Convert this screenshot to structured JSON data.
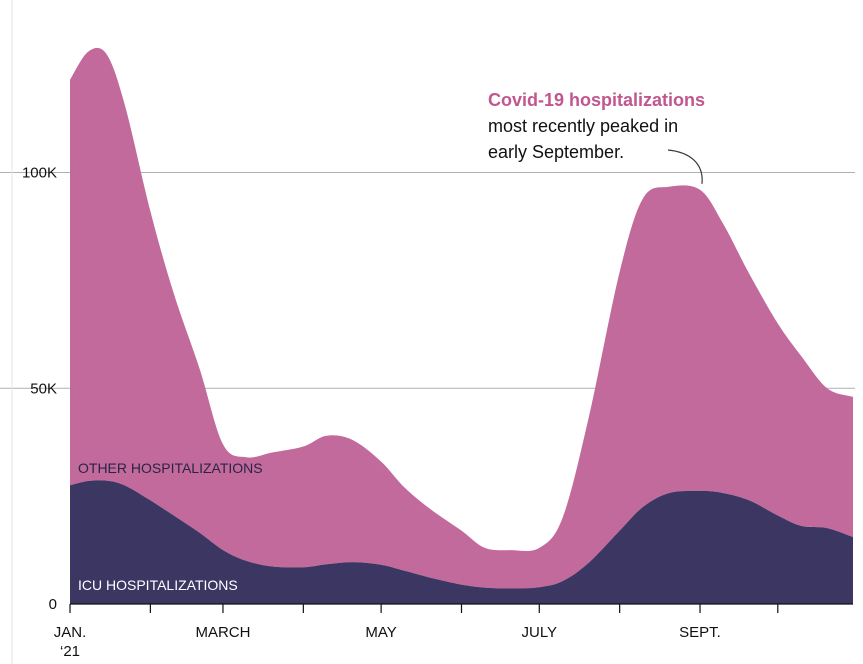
{
  "chart_data": {
    "type": "area",
    "stacked": true,
    "x": [
      "2021-01-01",
      "2021-01-08",
      "2021-01-15",
      "2021-01-22",
      "2021-02-01",
      "2021-02-10",
      "2021-02-20",
      "2021-03-01",
      "2021-03-10",
      "2021-03-20",
      "2021-04-01",
      "2021-04-10",
      "2021-04-20",
      "2021-05-01",
      "2021-05-10",
      "2021-05-20",
      "2021-06-01",
      "2021-06-10",
      "2021-06-20",
      "2021-07-01",
      "2021-07-10",
      "2021-07-20",
      "2021-08-01",
      "2021-08-10",
      "2021-08-20",
      "2021-09-01",
      "2021-09-10",
      "2021-09-20",
      "2021-10-01",
      "2021-10-10",
      "2021-10-20",
      "2021-10-30"
    ],
    "series": [
      {
        "name": "ICU HOSPITALIZATIONS",
        "color": "#3b3762",
        "values": [
          27.5,
          28.5,
          28.6,
          27.5,
          24,
          20.5,
          16.5,
          12.5,
          10,
          8.7,
          8.5,
          9.2,
          9.7,
          9.1,
          7.7,
          6.1,
          4.5,
          3.8,
          3.6,
          3.9,
          5.3,
          9.5,
          17,
          22.5,
          25.7,
          26.2,
          25.7,
          24,
          20.5,
          18.1,
          17.6,
          15.5
        ]
      },
      {
        "name": "OTHER HOSPITALIZATIONS",
        "color": "#c26a9b",
        "values": [
          94,
          99.5,
          98.9,
          88.5,
          67,
          51.5,
          38,
          24.5,
          24,
          26.4,
          28,
          29.8,
          28.3,
          23.9,
          19.3,
          15.9,
          12.5,
          9.2,
          8.9,
          9.1,
          14.7,
          33.5,
          60,
          71.5,
          71,
          69.8,
          62.3,
          52.5,
          44.5,
          39.4,
          32.4,
          32.5
        ]
      }
    ],
    "xtick_labels": [
      {
        "date": "2021-01-01",
        "label": "JAN.",
        "label2": "‘21"
      },
      {
        "date": "2021-03-01",
        "label": "MARCH"
      },
      {
        "date": "2021-05-01",
        "label": "MAY"
      },
      {
        "date": "2021-07-01",
        "label": "JULY"
      },
      {
        "date": "2021-09-01",
        "label": "SEPT."
      }
    ],
    "xticks_minor": [
      "2021-01-01",
      "2021-02-01",
      "2021-03-01",
      "2021-04-01",
      "2021-05-01",
      "2021-06-01",
      "2021-07-01",
      "2021-08-01",
      "2021-09-01",
      "2021-10-01"
    ],
    "yticks": [
      {
        "value": 0,
        "label": "0"
      },
      {
        "value": 50,
        "label": "50K"
      },
      {
        "value": 100,
        "label": "100K"
      }
    ],
    "xlim": [
      "2021-01-01",
      "2021-10-30"
    ],
    "ylim": [
      0,
      127
    ],
    "grid": true,
    "annotation": {
      "title": "Covid-19 hospitalizations",
      "lines": [
        "most recently peaked in",
        "early September."
      ],
      "target_date": "2021-09-01",
      "target_value": 96,
      "title_color": "#c0578f"
    },
    "text_color": "#111111",
    "grid_color": "#a9b3ba"
  }
}
